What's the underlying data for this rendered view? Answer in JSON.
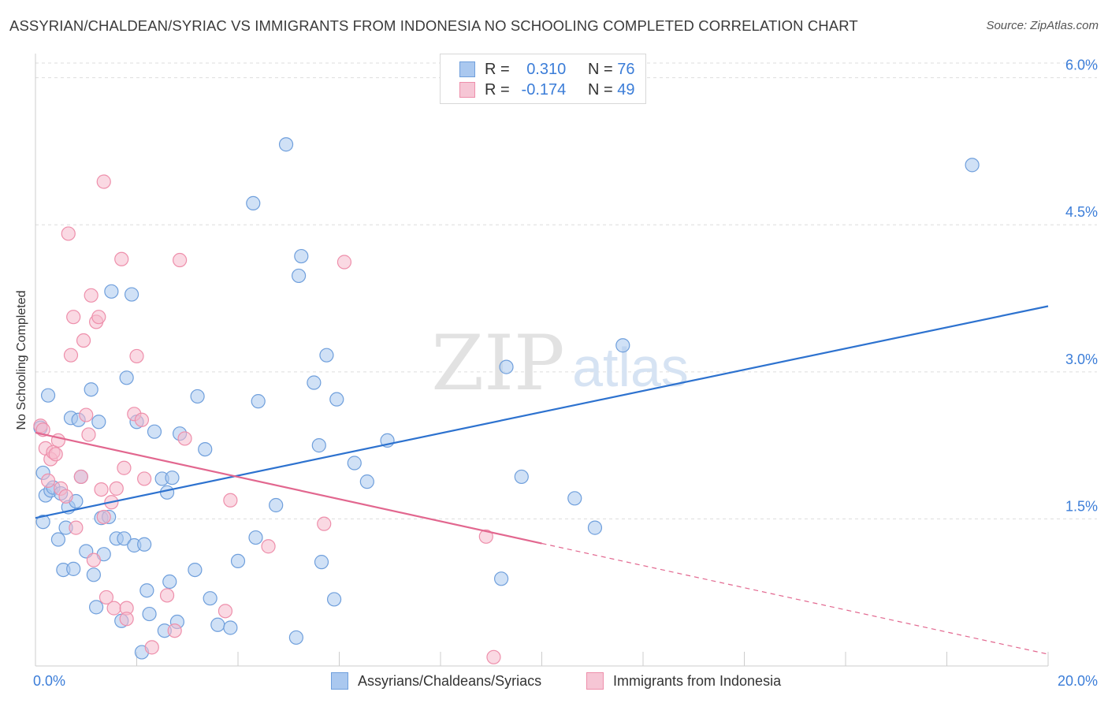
{
  "header": {
    "title": "ASSYRIAN/CHALDEAN/SYRIAC VS IMMIGRANTS FROM INDONESIA NO SCHOOLING COMPLETED CORRELATION CHART",
    "source": "Source: ZipAtlas.com"
  },
  "legend": {
    "r_label": "R =",
    "n_label": "N =",
    "rows": [
      {
        "r": "0.310",
        "n": "76"
      },
      {
        "r": "-0.174",
        "n": "49"
      }
    ]
  },
  "watermark": {
    "zip": "ZIP",
    "atlas": "atlas"
  },
  "colors": {
    "blue_fill": "#aac8ef",
    "blue_stroke": "#6f9fdc",
    "blue_line": "#2d72cf",
    "pink_fill": "#f6b9cc",
    "pink_stroke": "#ee8fab",
    "pink_line": "#e2678f",
    "tick_label": "#3b7dd8",
    "grid": "#dddddd"
  },
  "chart_data": {
    "type": "scatter",
    "ylabel": "No Schooling Completed",
    "xlim": [
      0,
      20
    ],
    "ylim": [
      0,
      6.15
    ],
    "x_tick_labels": [
      {
        "value": 0,
        "label": "0.0%"
      },
      {
        "value": 20,
        "label": "20.0%"
      }
    ],
    "y_tick_labels": [
      {
        "value": 1.5,
        "label": "1.5%"
      },
      {
        "value": 3.0,
        "label": "3.0%"
      },
      {
        "value": 4.5,
        "label": "4.5%"
      },
      {
        "value": 6.0,
        "label": "6.0%"
      }
    ],
    "x_minor_ticks": [
      0,
      2,
      4,
      6,
      8,
      10,
      12,
      14,
      16,
      18,
      20
    ],
    "grid": true,
    "legend_position": "top-center",
    "series": [
      {
        "name": "Assyrians/Chaldeans/Syriacs",
        "color": "#aac8ef",
        "trend": {
          "x0": 0,
          "y0": 1.51,
          "x1": 20,
          "y1": 3.67,
          "dash_from": null
        },
        "points": [
          [
            0.1,
            2.43
          ],
          [
            0.15,
            1.97
          ],
          [
            0.15,
            1.47
          ],
          [
            0.2,
            1.74
          ],
          [
            0.25,
            2.76
          ],
          [
            0.3,
            1.79
          ],
          [
            0.35,
            1.82
          ],
          [
            0.45,
            1.29
          ],
          [
            0.5,
            1.76
          ],
          [
            0.55,
            0.98
          ],
          [
            0.6,
            1.41
          ],
          [
            0.65,
            1.62
          ],
          [
            0.7,
            2.53
          ],
          [
            0.75,
            0.99
          ],
          [
            0.8,
            1.68
          ],
          [
            0.85,
            2.51
          ],
          [
            0.9,
            1.93
          ],
          [
            1.0,
            1.17
          ],
          [
            1.1,
            2.82
          ],
          [
            1.15,
            0.93
          ],
          [
            1.2,
            0.6
          ],
          [
            1.25,
            2.49
          ],
          [
            1.3,
            1.51
          ],
          [
            1.35,
            1.14
          ],
          [
            1.45,
            1.52
          ],
          [
            1.5,
            3.82
          ],
          [
            1.6,
            1.3
          ],
          [
            1.7,
            0.46
          ],
          [
            1.75,
            1.3
          ],
          [
            1.8,
            2.94
          ],
          [
            1.9,
            3.79
          ],
          [
            1.95,
            1.23
          ],
          [
            2.0,
            2.49
          ],
          [
            2.1,
            0.14
          ],
          [
            2.15,
            1.24
          ],
          [
            2.2,
            0.77
          ],
          [
            2.25,
            0.53
          ],
          [
            2.35,
            2.39
          ],
          [
            2.5,
            1.91
          ],
          [
            2.55,
            0.36
          ],
          [
            2.6,
            1.77
          ],
          [
            2.65,
            0.86
          ],
          [
            2.7,
            1.92
          ],
          [
            2.8,
            0.45
          ],
          [
            2.85,
            2.37
          ],
          [
            3.15,
            0.98
          ],
          [
            3.2,
            2.75
          ],
          [
            3.35,
            2.21
          ],
          [
            3.45,
            0.69
          ],
          [
            3.6,
            0.42
          ],
          [
            3.85,
            0.39
          ],
          [
            4.0,
            1.07
          ],
          [
            4.3,
            4.72
          ],
          [
            4.35,
            1.31
          ],
          [
            4.4,
            2.7
          ],
          [
            4.75,
            1.64
          ],
          [
            4.95,
            5.32
          ],
          [
            5.15,
            0.29
          ],
          [
            5.2,
            3.98
          ],
          [
            5.25,
            4.18
          ],
          [
            5.5,
            2.89
          ],
          [
            5.6,
            2.25
          ],
          [
            5.65,
            1.06
          ],
          [
            5.75,
            3.17
          ],
          [
            5.9,
            0.68
          ],
          [
            5.95,
            2.72
          ],
          [
            6.3,
            2.07
          ],
          [
            6.55,
            1.88
          ],
          [
            6.95,
            2.3
          ],
          [
            9.2,
            0.89
          ],
          [
            9.3,
            3.05
          ],
          [
            9.6,
            1.93
          ],
          [
            10.65,
            1.71
          ],
          [
            11.05,
            1.41
          ],
          [
            11.6,
            3.27
          ],
          [
            18.5,
            5.11
          ]
        ]
      },
      {
        "name": "Immigrants from Indonesia",
        "color": "#f6b9cc",
        "trend": {
          "x0": 0,
          "y0": 2.38,
          "x1": 20,
          "y1": 0.12,
          "dash_from": 10.0
        },
        "points": [
          [
            0.1,
            2.45
          ],
          [
            0.15,
            2.41
          ],
          [
            0.2,
            2.22
          ],
          [
            0.25,
            1.89
          ],
          [
            0.3,
            2.11
          ],
          [
            0.35,
            2.18
          ],
          [
            0.4,
            2.16
          ],
          [
            0.45,
            2.3
          ],
          [
            0.5,
            1.81
          ],
          [
            0.6,
            1.73
          ],
          [
            0.65,
            4.41
          ],
          [
            0.7,
            3.17
          ],
          [
            0.75,
            3.56
          ],
          [
            0.8,
            1.41
          ],
          [
            0.9,
            1.93
          ],
          [
            0.95,
            3.32
          ],
          [
            1.0,
            2.56
          ],
          [
            1.05,
            2.36
          ],
          [
            1.1,
            3.78
          ],
          [
            1.15,
            1.08
          ],
          [
            1.2,
            3.51
          ],
          [
            1.25,
            3.56
          ],
          [
            1.3,
            1.8
          ],
          [
            1.35,
            1.52
          ],
          [
            1.4,
            0.7
          ],
          [
            1.35,
            4.94
          ],
          [
            1.5,
            1.67
          ],
          [
            1.55,
            0.59
          ],
          [
            1.6,
            1.81
          ],
          [
            1.7,
            4.15
          ],
          [
            1.75,
            2.02
          ],
          [
            1.8,
            0.59
          ],
          [
            1.8,
            0.48
          ],
          [
            1.95,
            2.57
          ],
          [
            2.0,
            3.16
          ],
          [
            2.1,
            2.51
          ],
          [
            2.15,
            1.91
          ],
          [
            2.3,
            0.19
          ],
          [
            2.6,
            0.72
          ],
          [
            2.75,
            0.36
          ],
          [
            2.85,
            4.14
          ],
          [
            2.95,
            2.32
          ],
          [
            3.75,
            0.56
          ],
          [
            3.85,
            1.69
          ],
          [
            4.6,
            1.22
          ],
          [
            5.7,
            1.45
          ],
          [
            6.1,
            4.12
          ],
          [
            8.9,
            1.32
          ],
          [
            9.05,
            0.09
          ]
        ]
      }
    ]
  }
}
